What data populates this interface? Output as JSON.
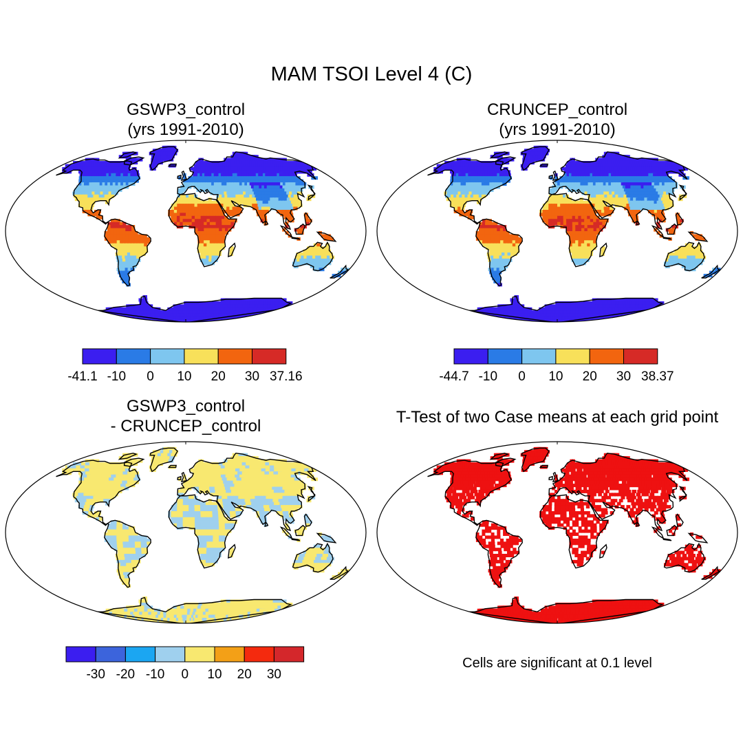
{
  "main_title": "MAM TSOI Level 4 (C)",
  "panels": [
    {
      "id": "gswp3",
      "title_line1": "GSWP3_control",
      "title_line2": "(yrs 1991-2010)",
      "kind": "field",
      "variant": 0
    },
    {
      "id": "cruncep",
      "title_line1": "CRUNCEP_control",
      "title_line2": "(yrs 1991-2010)",
      "kind": "field",
      "variant": 1
    },
    {
      "id": "diff",
      "title_line1": "GSWP3_control",
      "title_line2": "- CRUNCEP_control",
      "kind": "diff",
      "variant": 2
    },
    {
      "id": "ttest",
      "title_line1": "T-Test of two Case means at each grid point",
      "title_line2": "",
      "kind": "ttest",
      "variant": 3
    }
  ],
  "colorbars": [
    {
      "id": "gswp3",
      "colors": [
        "#3b1ef0",
        "#2a7be6",
        "#7ec6ef",
        "#f8e05a",
        "#f2650f",
        "#d62a26"
      ],
      "labels": [
        "-41.1",
        "-10",
        "0",
        "10",
        "20",
        "30",
        "37.16"
      ]
    },
    {
      "id": "cruncep",
      "colors": [
        "#3b1ef0",
        "#2a7be6",
        "#7ec6ef",
        "#f8e05a",
        "#f2650f",
        "#d62a26"
      ],
      "labels": [
        "-44.7",
        "-10",
        "0",
        "10",
        "20",
        "30",
        "38.37"
      ]
    },
    {
      "id": "diff",
      "colors": [
        "#3b1ef0",
        "#3c64dc",
        "#1ba6f2",
        "#9fd0ee",
        "#f8e870",
        "#f3a017",
        "#f42a0e",
        "#d4272b"
      ],
      "labels": [
        "-30",
        "-20",
        "-10",
        "0",
        "10",
        "20",
        "30"
      ]
    }
  ],
  "ttest_note": "Cells are significant at 0.1 level",
  "colors": {
    "significant": "#ee1111",
    "coast": "#000000",
    "frame": "#000000"
  }
}
